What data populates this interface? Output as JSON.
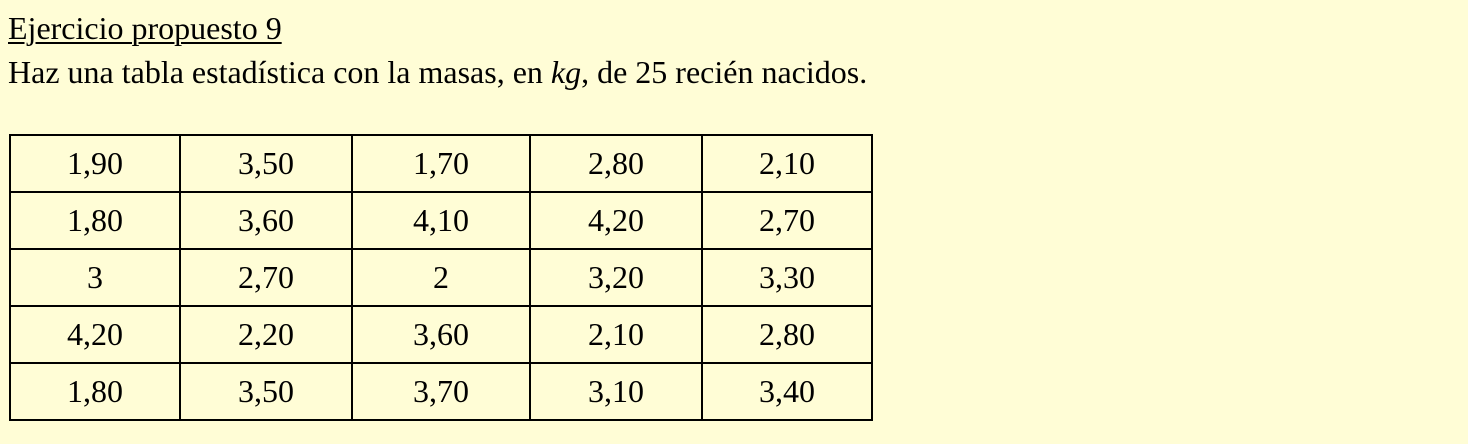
{
  "title": "Ejercicio propuesto 9",
  "statement": {
    "before": "Haz una tabla estadística con la masas, en ",
    "unit": "kg",
    "after": ", de 25 recién nacidos."
  },
  "table": [
    [
      "1,90",
      "3,50",
      "1,70",
      "2,80",
      "2,10"
    ],
    [
      "1,80",
      "3,60",
      "4,10",
      "4,20",
      "2,70"
    ],
    [
      "3",
      "2,70",
      "2",
      "3,20",
      "3,30"
    ],
    [
      "4,20",
      "2,20",
      "3,60",
      "2,10",
      "2,80"
    ],
    [
      "1,80",
      "3,50",
      "3,70",
      "3,10",
      "3,40"
    ]
  ]
}
